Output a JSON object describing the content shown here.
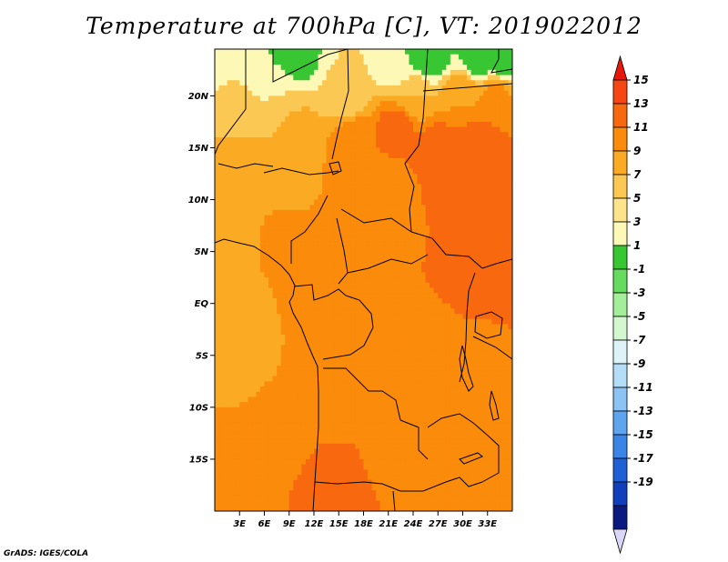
{
  "title": "Temperature at 700hPa [C], VT: 2019022012",
  "credit": "GrADS: IGES/COLA",
  "map": {
    "projection": "latlon",
    "lon_range": [
      0,
      36
    ],
    "lat_range": [
      -20,
      24.5
    ],
    "lat_ticks": [
      {
        "value": 20,
        "label": "20N"
      },
      {
        "value": 15,
        "label": "15N"
      },
      {
        "value": 10,
        "label": "10N"
      },
      {
        "value": 5,
        "label": "5N"
      },
      {
        "value": 0,
        "label": "EQ"
      },
      {
        "value": -5,
        "label": "5S"
      },
      {
        "value": -10,
        "label": "10S"
      },
      {
        "value": -15,
        "label": "15S"
      }
    ],
    "lon_ticks": [
      {
        "value": 3,
        "label": "3E"
      },
      {
        "value": 6,
        "label": "6E"
      },
      {
        "value": 9,
        "label": "9E"
      },
      {
        "value": 12,
        "label": "12E"
      },
      {
        "value": 15,
        "label": "15E"
      },
      {
        "value": 18,
        "label": "18E"
      },
      {
        "value": 21,
        "label": "21E"
      },
      {
        "value": 24,
        "label": "24E"
      },
      {
        "value": 27,
        "label": "27E"
      },
      {
        "value": 30,
        "label": "30E"
      },
      {
        "value": 33,
        "label": "33E"
      }
    ],
    "field_samples": [
      {
        "lon": 1,
        "lat": 23,
        "t": 3
      },
      {
        "lon": 5,
        "lat": 23.5,
        "t": 3
      },
      {
        "lon": 10,
        "lat": 23.8,
        "t": 1.5
      },
      {
        "lon": 16,
        "lat": 23,
        "t": 5
      },
      {
        "lon": 22,
        "lat": 23,
        "t": 3
      },
      {
        "lon": 26,
        "lat": 23.8,
        "t": 1.5
      },
      {
        "lon": 32,
        "lat": 23.5,
        "t": 2
      },
      {
        "lon": 35,
        "lat": 23.5,
        "t": 1.5
      },
      {
        "lon": 2,
        "lat": 20,
        "t": 5.5
      },
      {
        "lon": 8,
        "lat": 20,
        "t": 5
      },
      {
        "lon": 16,
        "lat": 20,
        "t": 6
      },
      {
        "lon": 24,
        "lat": 20,
        "t": 7
      },
      {
        "lon": 30,
        "lat": 20,
        "t": 9
      },
      {
        "lon": 34,
        "lat": 20,
        "t": 9.5
      },
      {
        "lon": 2,
        "lat": 17,
        "t": 7
      },
      {
        "lon": 10,
        "lat": 17,
        "t": 7.5
      },
      {
        "lon": 17,
        "lat": 15.5,
        "t": 11
      },
      {
        "lon": 22,
        "lat": 17,
        "t": 12
      },
      {
        "lon": 27,
        "lat": 15,
        "t": 12
      },
      {
        "lon": 32,
        "lat": 15.5,
        "t": 12.5
      },
      {
        "lon": 34,
        "lat": 12,
        "t": 12.5
      },
      {
        "lon": 29,
        "lat": 10,
        "t": 11.5
      },
      {
        "lon": 2,
        "lat": 13,
        "t": 8
      },
      {
        "lon": 8,
        "lat": 12,
        "t": 8.5
      },
      {
        "lon": 13,
        "lat": 11,
        "t": 9
      },
      {
        "lon": 20,
        "lat": 11,
        "t": 10
      },
      {
        "lon": 24,
        "lat": 11,
        "t": 11
      },
      {
        "lon": 3,
        "lat": 7,
        "t": 8.5
      },
      {
        "lon": 8,
        "lat": 6,
        "t": 9.5
      },
      {
        "lon": 15,
        "lat": 6,
        "t": 9.5
      },
      {
        "lon": 22,
        "lat": 5,
        "t": 10
      },
      {
        "lon": 28,
        "lat": 4,
        "t": 11.5
      },
      {
        "lon": 33,
        "lat": 3,
        "t": 12
      },
      {
        "lon": 1,
        "lat": 1,
        "t": 8
      },
      {
        "lon": 6,
        "lat": 0,
        "t": 9
      },
      {
        "lon": 12,
        "lat": 0,
        "t": 9.5
      },
      {
        "lon": 18,
        "lat": 0,
        "t": 10
      },
      {
        "lon": 24,
        "lat": -1,
        "t": 10.5
      },
      {
        "lon": 30,
        "lat": -1,
        "t": 11
      },
      {
        "lon": 35,
        "lat": 0,
        "t": 12
      },
      {
        "lon": 1,
        "lat": -5,
        "t": 7.5
      },
      {
        "lon": 4,
        "lat": -4,
        "t": 8
      },
      {
        "lon": 12,
        "lat": -5,
        "t": 9.5
      },
      {
        "lon": 18,
        "lat": -5,
        "t": 10.5
      },
      {
        "lon": 22,
        "lat": -4,
        "t": 11
      },
      {
        "lon": 28,
        "lat": -6,
        "t": 11
      },
      {
        "lon": 34,
        "lat": -4,
        "t": 10
      },
      {
        "lon": 2,
        "lat": -10,
        "t": 9
      },
      {
        "lon": 8,
        "lat": -11,
        "t": 9.5
      },
      {
        "lon": 15,
        "lat": -10,
        "t": 10
      },
      {
        "lon": 20,
        "lat": -10,
        "t": 9.5
      },
      {
        "lon": 26,
        "lat": -10,
        "t": 9.5
      },
      {
        "lon": 32,
        "lat": -10,
        "t": 9.5
      },
      {
        "lon": 2,
        "lat": -15,
        "t": 10
      },
      {
        "lon": 8,
        "lat": -16,
        "t": 11
      },
      {
        "lon": 15,
        "lat": -16,
        "t": 11.5
      },
      {
        "lon": 21,
        "lat": -15,
        "t": 10.5
      },
      {
        "lon": 26,
        "lat": -15,
        "t": 9.5
      },
      {
        "lon": 31,
        "lat": -15,
        "t": 10
      },
      {
        "lon": 35,
        "lat": -16,
        "t": 9
      },
      {
        "lon": 2,
        "lat": -19,
        "t": 10.5
      },
      {
        "lon": 8,
        "lat": -19,
        "t": 11
      },
      {
        "lon": 15,
        "lat": -19,
        "t": 12.5
      },
      {
        "lon": 22,
        "lat": -19,
        "t": 11
      },
      {
        "lon": 28,
        "lat": -19,
        "t": 10
      },
      {
        "lon": 34,
        "lat": -19,
        "t": 9
      }
    ]
  },
  "colorbar": {
    "label_levels": [
      15,
      13,
      11,
      9,
      7,
      5,
      3,
      1,
      -1,
      -3,
      -5,
      -7,
      -9,
      -11,
      -13,
      -15,
      -17,
      -19
    ],
    "labels": [
      "15",
      "13",
      "11",
      "9",
      "7",
      "5",
      "3",
      "1",
      "-1",
      "-3",
      "-5",
      "-7",
      "-9",
      "-11",
      "-13",
      "-15",
      "-17",
      "-19"
    ],
    "colors_top_to_bottom": [
      "#e8170c",
      "#f64712",
      "#f8690f",
      "#fb8b0a",
      "#fbaa24",
      "#fcc854",
      "#fde38a",
      "#fef8b7",
      "#38c633",
      "#66db60",
      "#a3ee98",
      "#d3f8cf",
      "#def3f7",
      "#b4def8",
      "#8ac3f4",
      "#5fa4ef",
      "#3b84e8",
      "#2060d6",
      "#0f3fbd",
      "#0a1a80",
      "#dad6f7"
    ]
  }
}
